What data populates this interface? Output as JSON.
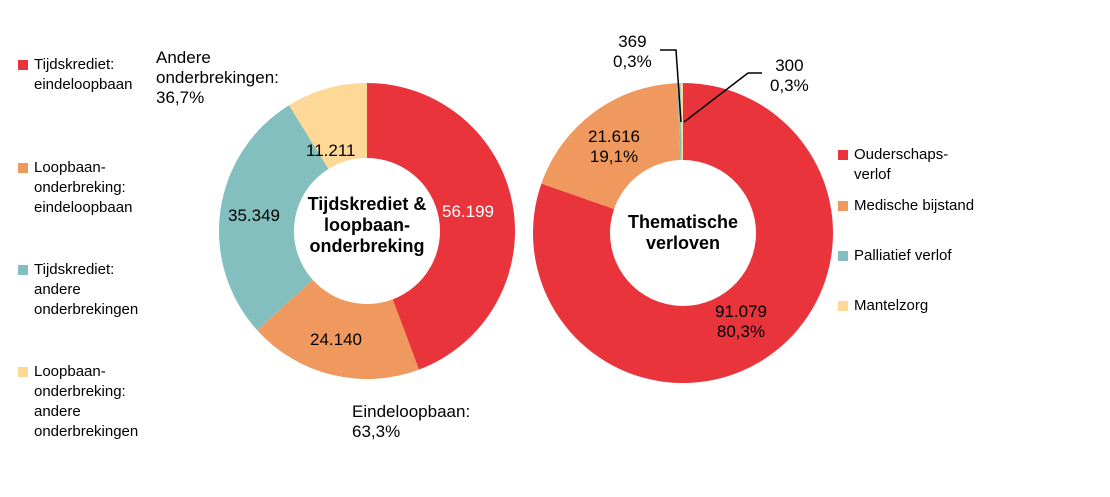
{
  "chart_data": [
    {
      "type": "pie",
      "subtype": "donut",
      "title": "Tijdskrediet &\nloopbaan-\nonderbreking",
      "categories": [
        "Tijdskrediet:\neindeloopbaan",
        "Loopbaan-\nonderbreking:\neindeloopbaan",
        "Tijdskrediet:\nandere\nonderbrekingen",
        "Loopbaan-\nonderbreking:\nandere\nonderbrekingen"
      ],
      "values": [
        56199,
        24140,
        35349,
        11211
      ],
      "value_labels": [
        "56.199",
        "24.140",
        "35.349",
        "11.211"
      ],
      "colors": [
        "#E8343A",
        "#F0995E",
        "#82BFBE",
        "#FDD896"
      ],
      "legend_position": "left",
      "annotations": [
        "Andere\nonderbrekingen:\n36,7%",
        "Eindeloopbaan:\n63,3%"
      ]
    },
    {
      "type": "pie",
      "subtype": "donut",
      "title": "Thematische\nverloven",
      "categories": [
        "Ouderschaps-\nverlof",
        "Medische bijstand",
        "Palliatief verlof",
        "Mantelzorg"
      ],
      "values": [
        91079,
        21616,
        369,
        300
      ],
      "value_labels": [
        "91.079\n80,3%",
        "21.616\n19,1%",
        "369\n0,3%",
        "300\n0,3%"
      ],
      "colors": [
        "#E8343A",
        "#F0995E",
        "#82BFBE",
        "#FDD896"
      ],
      "legend_position": "right"
    }
  ]
}
